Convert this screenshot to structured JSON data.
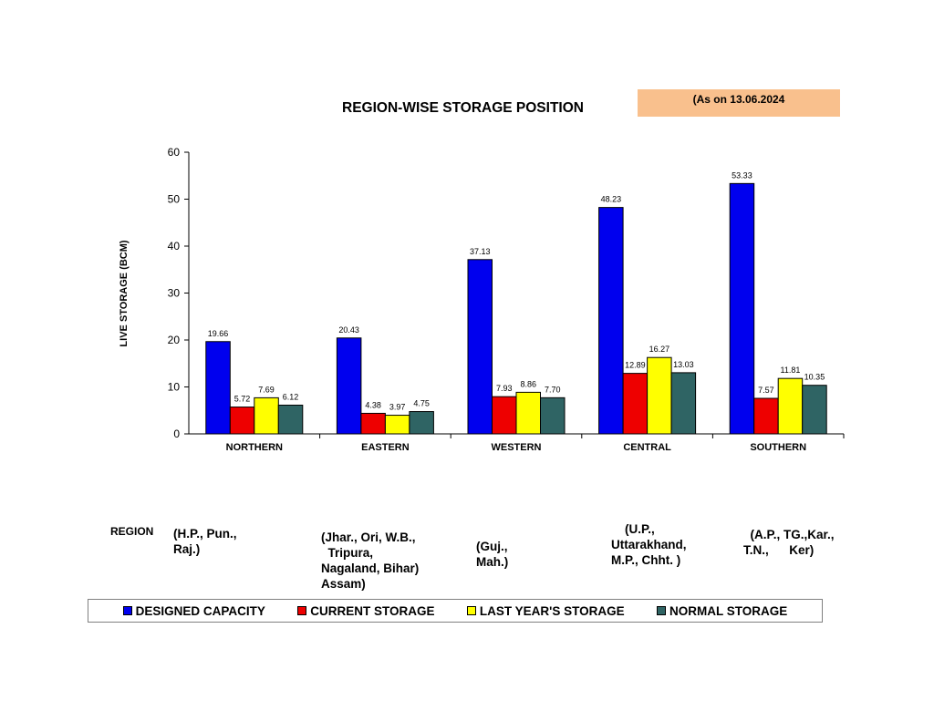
{
  "date_note": "(As on 13.06.2024",
  "region_label": "REGION",
  "region_notes": [
    "(H.P., Pun.,\nRaj.)",
    "(Jhar., Ori, W.B.,\n  Tripura,\nNagaland, Bihar)\nAssam)",
    "(Guj.,\nMah.)",
    "    (U.P.,\nUttarakhand,\nM.P., Chht. )",
    "  (A.P., TG.,Kar.,\nT.N.,      Ker)"
  ],
  "chart_data": {
    "type": "bar",
    "title": "REGION-WISE STORAGE POSITION",
    "ylabel": "LIVE STORAGE (BCM)",
    "xlabel": "",
    "ylim": [
      0,
      60
    ],
    "yticks": [
      0,
      10,
      20,
      30,
      40,
      50,
      60
    ],
    "categories": [
      "NORTHERN",
      "EASTERN",
      "WESTERN",
      "CENTRAL",
      "SOUTHERN"
    ],
    "series": [
      {
        "name": "DESIGNED CAPACITY",
        "color": "#0000ee",
        "values": [
          19.66,
          20.43,
          37.13,
          48.23,
          53.33
        ]
      },
      {
        "name": "CURRENT STORAGE",
        "color": "#ee0000",
        "values": [
          5.72,
          4.38,
          7.93,
          12.89,
          7.57
        ]
      },
      {
        "name": "LAST YEAR'S STORAGE",
        "color": "#ffff00",
        "values": [
          7.69,
          3.97,
          8.86,
          16.27,
          11.81
        ]
      },
      {
        "name": "NORMAL STORAGE",
        "color": "#2f6464",
        "values": [
          6.12,
          4.75,
          7.7,
          13.03,
          10.35
        ]
      }
    ],
    "labels": [
      [
        "19.66",
        "20.43",
        "37.13",
        "48.23",
        "53.33"
      ],
      [
        "5.72",
        "4.38",
        "7.93",
        "12.89",
        "7.57"
      ],
      [
        "7.69",
        "3.97",
        "8.86",
        "16.27",
        "11.81"
      ],
      [
        "6.12",
        "4.75",
        "7.70",
        "13.03",
        "10.35"
      ]
    ],
    "legend_position": "bottom"
  }
}
